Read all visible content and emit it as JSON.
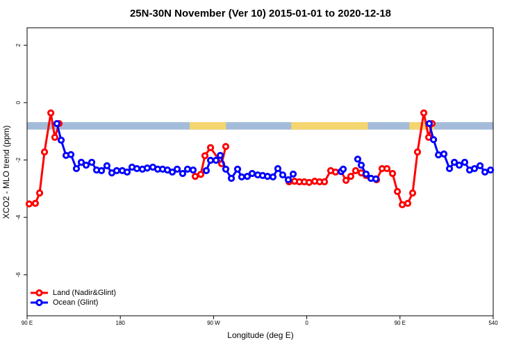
{
  "chart_data": {
    "type": "line",
    "title": "25N-30N November (Ver 10)   2015-01-01 to 2020-12-18",
    "x_label": "Longitude (deg E)",
    "y_label": "XCO2 - MLO trend (ppm)",
    "xlim": [
      90,
      540
    ],
    "xticks": [
      {
        "value": 90,
        "label": "90 E"
      },
      180,
      {
        "value": 270,
        "label": "90 W"
      },
      {
        "value": 360,
        "label": "0"
      },
      {
        "value": 450,
        "label": "90 E"
      },
      540
    ],
    "ylim": [
      -7.43,
      2.61
    ],
    "yticks": [
      2,
      0,
      -2,
      -4,
      -6
    ],
    "legend": "bottom-left",
    "land_mask": {
      "ylim": [
        -0.94,
        -0.68
      ],
      "land": [
        [
          247,
          282
        ],
        [
          345,
          419
        ],
        [
          459,
          483
        ]
      ],
      "land_color": "#f5d56f",
      "ocean_color": "#a4bcd9"
    },
    "series": [
      {
        "name": "Land (Nadir&Glint)",
        "color": "#ff0000",
        "x": [
          92.0,
          98.0,
          102.1,
          106.8,
          112.9,
          116.8,
          120.9,
          null,
          252.3,
          257.7,
          261.7,
          267.1,
          277.8,
          281.8,
          null,
          342.9,
          348.2,
          352.9,
          357.6,
          362.3,
          367.7,
          372.4,
          377.1,
          383.1,
          387.8,
          393.2,
          397.9,
          402.5,
          407.2,
          412.6,
          417.3,
          422.0,
          427.4,
          432.7,
          437.4,
          442.8,
          447.5,
          452.2,
          457.5,
          462.2,
          466.9,
          473.0,
          477.7,
          481.0
        ],
        "values": [
          -3.53,
          -3.51,
          -3.15,
          -1.72,
          -0.36,
          -1.21,
          -0.73,
          null,
          -2.57,
          -2.5,
          -1.85,
          -1.57,
          -2.13,
          -1.53,
          null,
          -2.76,
          -2.74,
          -2.76,
          -2.76,
          -2.78,
          -2.74,
          -2.76,
          -2.76,
          -2.37,
          -2.42,
          -2.4,
          -2.71,
          -2.57,
          -2.37,
          -2.45,
          -2.54,
          -2.64,
          -2.69,
          -2.3,
          -2.3,
          -2.47,
          -3.1,
          -3.56,
          -3.51,
          -3.15,
          -1.72,
          -0.36,
          -1.21,
          -0.73
        ]
      },
      {
        "name": "Ocean (Glint)",
        "color": "#0000ff",
        "x": [
          118.8,
          122.9,
          127.6,
          132.3,
          137.6,
          142.3,
          147.0,
          152.4,
          157.1,
          161.8,
          167.1,
          171.8,
          176.5,
          181.9,
          186.6,
          191.3,
          196.0,
          201.3,
          206.0,
          211.4,
          216.1,
          220.8,
          225.5,
          230.2,
          234.9,
          240.2,
          244.9,
          250.3,
          null,
          263.0,
          267.1,
          272.4,
          276.5,
          281.8,
          287.2,
          293.2,
          297.2,
          302.6,
          307.3,
          312.7,
          317.4,
          322.1,
          327.4,
          332.1,
          336.8,
          342.2,
          346.9,
          null,
          393.2,
          395.2,
          null,
          409.2,
          412.6,
          417.3,
          422.0,
          426.7,
          null,
          478.3,
          482.4,
          487.1,
          492.4,
          497.8,
          502.5,
          507.2,
          512.5,
          517.2,
          521.9,
          527.3,
          532.0,
          537.4
        ],
        "values": [
          -0.73,
          -1.31,
          -1.84,
          -1.81,
          -2.3,
          -2.08,
          -2.18,
          -2.08,
          -2.35,
          -2.37,
          -2.2,
          -2.45,
          -2.37,
          -2.37,
          -2.42,
          -2.25,
          -2.3,
          -2.32,
          -2.28,
          -2.25,
          -2.32,
          -2.32,
          -2.35,
          -2.42,
          -2.32,
          -2.47,
          -2.32,
          -2.35,
          null,
          -2.37,
          -2.01,
          -2.01,
          -1.84,
          -2.32,
          -2.64,
          -2.32,
          -2.59,
          -2.57,
          -2.47,
          -2.52,
          -2.54,
          -2.57,
          -2.59,
          -2.3,
          -2.52,
          -2.69,
          -2.49,
          null,
          -2.4,
          -2.32,
          null,
          -1.97,
          -2.18,
          -2.49,
          -2.64,
          -2.66,
          null,
          -0.73,
          -1.29,
          -1.82,
          -1.79,
          -2.3,
          -2.08,
          -2.18,
          -2.08,
          -2.35,
          -2.3,
          -2.2,
          -2.42,
          -2.35
        ]
      }
    ]
  }
}
